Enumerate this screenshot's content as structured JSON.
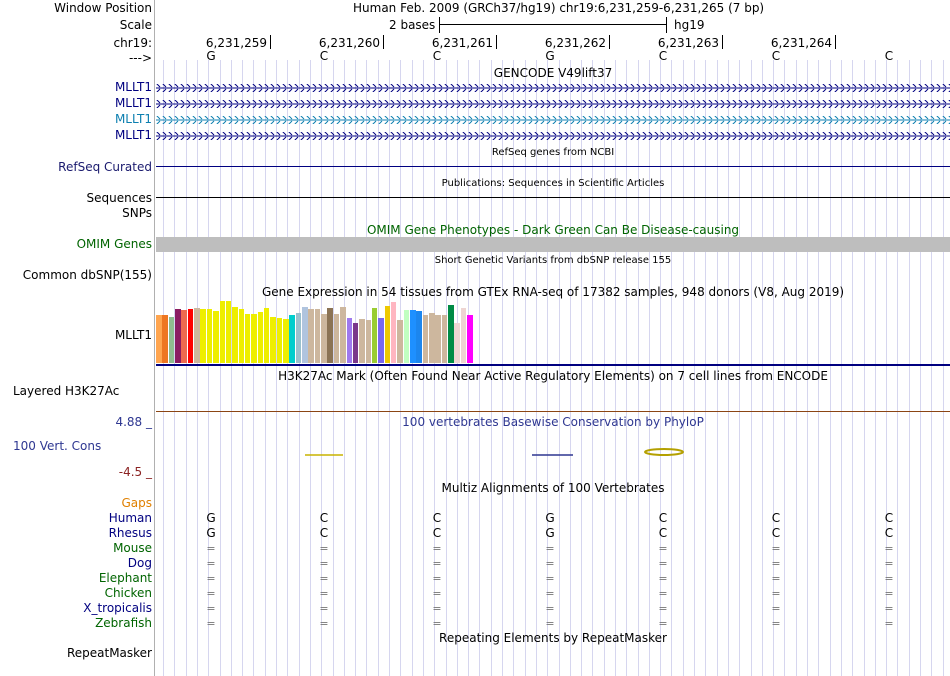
{
  "header": {
    "window_position_label": "Window Position",
    "assembly_position": "Human Feb. 2009 (GRCh37/hg19)   chr19:6,231,259-6,231,265 (7 bp)",
    "scale_label": "Scale",
    "scale_bases": "2 bases",
    "scale_db": "hg19",
    "chrom_label": "chr19:",
    "strand_label": "--->",
    "coordinates": [
      "6,231,259",
      "6,231,260",
      "6,231,261",
      "6,231,262",
      "6,231,263",
      "6,231,264"
    ],
    "bases": [
      "G",
      "C",
      "C",
      "G",
      "C",
      "C",
      "C"
    ]
  },
  "gencode": {
    "title": "GENCODE V49lift37",
    "transcripts": [
      {
        "label": "MLLT1",
        "color": "#000080"
      },
      {
        "label": "MLLT1",
        "color": "#000080"
      },
      {
        "label": "MLLT1",
        "color": "#0c7fb0"
      },
      {
        "label": "MLLT1",
        "color": "#000080"
      }
    ]
  },
  "refseq": {
    "title": "RefSeq genes from NCBI",
    "label": "RefSeq Curated"
  },
  "publications": {
    "title": "Publications: Sequences in Scientific Articles",
    "label": "Sequences"
  },
  "snps_label": "SNPs",
  "omim": {
    "title": "OMIM Gene Phenotypes - Dark Green Can Be Disease-causing",
    "label": "OMIM Genes",
    "color": "#006400"
  },
  "dbsnp": {
    "title": "Short Genetic Variants from dbSNP release 155",
    "label": "Common dbSNP(155)"
  },
  "gtex": {
    "title": "Gene Expression in 54 tissues from GTEx RNA-seq of 17382 samples, 948 donors (V8, Aug 2019)",
    "label": "MLLT1",
    "tissues": [
      {
        "value": 48,
        "color": "#ffa54f"
      },
      {
        "value": 48,
        "color": "#ee7621"
      },
      {
        "value": 46,
        "color": "#8fbc8f"
      },
      {
        "value": 54,
        "color": "#8b1c62"
      },
      {
        "value": 53,
        "color": "#ee6a50"
      },
      {
        "value": 54,
        "color": "#ff0000"
      },
      {
        "value": 55,
        "color": "#cdb79e"
      },
      {
        "value": 54,
        "color": "#eeee00"
      },
      {
        "value": 54,
        "color": "#eeee00"
      },
      {
        "value": 52,
        "color": "#eeee00"
      },
      {
        "value": 62,
        "color": "#eeee00"
      },
      {
        "value": 62,
        "color": "#eeee00"
      },
      {
        "value": 56,
        "color": "#eeee00"
      },
      {
        "value": 54,
        "color": "#eeee00"
      },
      {
        "value": 49,
        "color": "#eeee00"
      },
      {
        "value": 49,
        "color": "#eeee00"
      },
      {
        "value": 51,
        "color": "#eeee00"
      },
      {
        "value": 55,
        "color": "#eeee00"
      },
      {
        "value": 46,
        "color": "#eeee00"
      },
      {
        "value": 45,
        "color": "#eeee00"
      },
      {
        "value": 44,
        "color": "#eeee00"
      },
      {
        "value": 48,
        "color": "#00cdcd"
      },
      {
        "value": 50,
        "color": "#9ac0cd"
      },
      {
        "value": 56,
        "color": "#b0c4de"
      },
      {
        "value": 54,
        "color": "#cdb79e"
      },
      {
        "value": 54,
        "color": "#cdb79e"
      },
      {
        "value": 49,
        "color": "#cdb79e"
      },
      {
        "value": 55,
        "color": "#8b7355"
      },
      {
        "value": 49,
        "color": "#cdb79e"
      },
      {
        "value": 56,
        "color": "#cdb79e"
      },
      {
        "value": 45,
        "color": "#9f79ee"
      },
      {
        "value": 40,
        "color": "#7a378b"
      },
      {
        "value": 44,
        "color": "#cdb79e"
      },
      {
        "value": 43,
        "color": "#cdb79e"
      },
      {
        "value": 55,
        "color": "#9acd32"
      },
      {
        "value": 45,
        "color": "#7a67ee"
      },
      {
        "value": 57,
        "color": "#eec900"
      },
      {
        "value": 61,
        "color": "#ffb6c1"
      },
      {
        "value": 43,
        "color": "#cdb79e"
      },
      {
        "value": 53,
        "color": "#c1ffc1"
      },
      {
        "value": 53,
        "color": "#1e90ff"
      },
      {
        "value": 52,
        "color": "#1c86ee"
      },
      {
        "value": 48,
        "color": "#cdb79e"
      },
      {
        "value": 50,
        "color": "#cdb79e"
      },
      {
        "value": 48,
        "color": "#cdb79e"
      },
      {
        "value": 48,
        "color": "#cdb79e"
      },
      {
        "value": 58,
        "color": "#008b45"
      },
      {
        "value": 40,
        "color": "#eed5d2"
      },
      {
        "value": 55,
        "color": "#eed5d2"
      },
      {
        "value": 48,
        "color": "#ff00ff"
      }
    ]
  },
  "h3k27ac": {
    "title": "H3K27Ac Mark (Often Found Near Active Regulatory Elements) on 7 cell lines from ENCODE",
    "label": "Layered H3K27Ac"
  },
  "conservation": {
    "title": "100 vertebrates Basewise Conservation by PhyloP",
    "label": "100 Vert. Cons",
    "max_label": "4.88 _",
    "min_label": "-4.5 _",
    "color": "#2e3791",
    "max_color": "#2e3791",
    "min_color": "#8b2323"
  },
  "multiz": {
    "title": "Multiz Alignments of 100 Vertebrates",
    "gaps_label": "Gaps",
    "gaps_color": "#e08000",
    "species": [
      {
        "name": "Human",
        "color": "#000080",
        "row": [
          "G",
          "C",
          "C",
          "G",
          "C",
          "C",
          "C"
        ]
      },
      {
        "name": "Rhesus",
        "color": "#000080",
        "row": [
          "G",
          "C",
          "C",
          "G",
          "C",
          "C",
          "C"
        ]
      },
      {
        "name": "Mouse",
        "color": "#006400",
        "row": [
          "=",
          "=",
          "=",
          "=",
          "=",
          "=",
          "="
        ]
      },
      {
        "name": "Dog",
        "color": "#000080",
        "row": [
          "=",
          "=",
          "=",
          "=",
          "=",
          "=",
          "="
        ]
      },
      {
        "name": "Elephant",
        "color": "#006400",
        "row": [
          "=",
          "=",
          "=",
          "=",
          "=",
          "=",
          "="
        ]
      },
      {
        "name": "Chicken",
        "color": "#006400",
        "row": [
          "=",
          "=",
          "=",
          "=",
          "=",
          "=",
          "="
        ]
      },
      {
        "name": "X_tropicalis",
        "color": "#000080",
        "row": [
          "=",
          "=",
          "=",
          "=",
          "=",
          "=",
          "="
        ]
      },
      {
        "name": "Zebrafish",
        "color": "#006400",
        "row": [
          "=",
          "=",
          "=",
          "=",
          "=",
          "=",
          "="
        ]
      }
    ]
  },
  "repeatmasker": {
    "title": "Repeating Elements by RepeatMasker",
    "label": "RepeatMasker"
  }
}
